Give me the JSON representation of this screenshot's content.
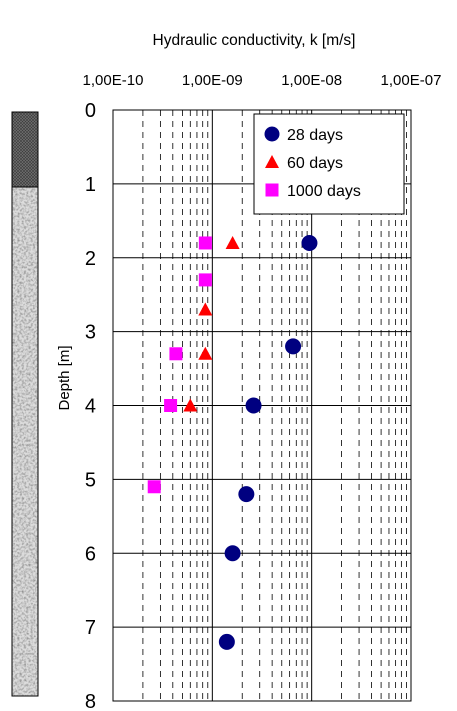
{
  "chart_data": {
    "type": "scatter",
    "title": "Hydraulic conductivity, k  [m/s]",
    "xlabel": "Hydraulic conductivity, k  [m/s]",
    "ylabel": "Depth [m]",
    "x_scale": "log",
    "x_axis_position": "top",
    "y_inverted": true,
    "xlim": [
      1e-10,
      1e-07
    ],
    "ylim": [
      0,
      8
    ],
    "x_ticks": [
      "1,00E-10",
      "1,00E-09",
      "1,00E-08",
      "1,00E-07"
    ],
    "y_ticks": [
      "0",
      "1",
      "2",
      "3",
      "4",
      "5",
      "6",
      "7",
      "8"
    ],
    "grid": true,
    "legend_position": "top-right",
    "series": [
      {
        "name": "28 days",
        "marker": "circle",
        "color": "#000080",
        "points": [
          {
            "x": 9.5e-09,
            "y": 1.8
          },
          {
            "x": 6.5e-09,
            "y": 3.2
          },
          {
            "x": 2.6e-09,
            "y": 4.0
          },
          {
            "x": 2.2e-09,
            "y": 5.2
          },
          {
            "x": 1.6e-09,
            "y": 6.0
          },
          {
            "x": 1.4e-09,
            "y": 7.2
          }
        ]
      },
      {
        "name": "60 days",
        "marker": "triangle",
        "color": "#ff0000",
        "points": [
          {
            "x": 1.6e-09,
            "y": 1.8
          },
          {
            "x": 8.5e-10,
            "y": 2.7
          },
          {
            "x": 8.5e-10,
            "y": 3.3
          },
          {
            "x": 6e-10,
            "y": 4.0
          }
        ]
      },
      {
        "name": "1000 days",
        "marker": "square",
        "color": "#ff00ff",
        "points": [
          {
            "x": 8.5e-10,
            "y": 1.8
          },
          {
            "x": 8.5e-10,
            "y": 2.3
          },
          {
            "x": 4.3e-10,
            "y": 3.3
          },
          {
            "x": 3.8e-10,
            "y": 4.0
          },
          {
            "x": 2.6e-10,
            "y": 5.1
          }
        ]
      }
    ]
  }
}
